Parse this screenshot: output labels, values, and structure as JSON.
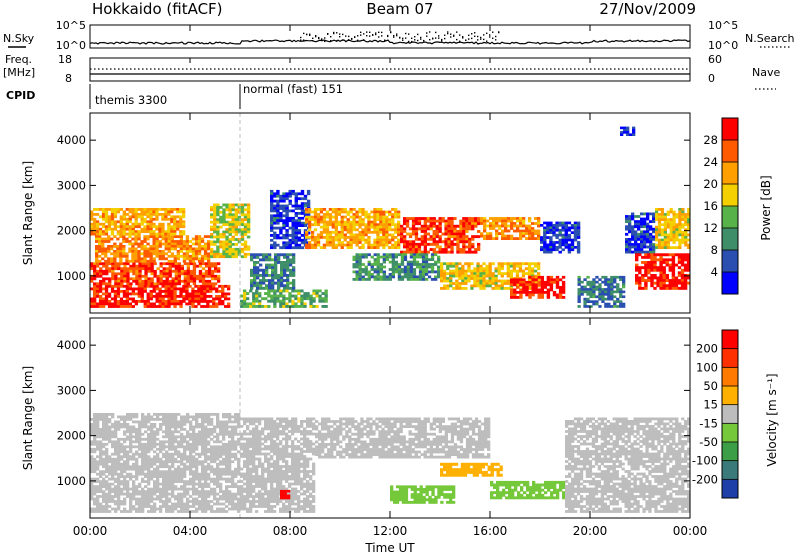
{
  "header": {
    "radar": "Hokkaido (fitACF)",
    "beam": "Beam 07",
    "date": "27/Nov/2009"
  },
  "noise_panel": {
    "left_label": "N.Sky",
    "right_label": "N.Search",
    "left_ticks": [
      "10^5",
      "10^0"
    ],
    "right_ticks": [
      "10^5",
      "10^0"
    ]
  },
  "freq_panel": {
    "left_label_top": "Freq.",
    "left_label_bottom": "[MHz]",
    "left_ticks": [
      "18",
      "8"
    ],
    "right_label": "Nave",
    "right_ticks": [
      "60",
      "0"
    ]
  },
  "cpid_panel": {
    "label": "CPID",
    "modes": [
      {
        "name": "themis 3300",
        "start_hour": 0
      },
      {
        "name": "normal (fast) 151",
        "start_hour": 6
      }
    ]
  },
  "power_panel": {
    "ylabel": "Slant Range [km]",
    "yticks": [
      "4000",
      "3000",
      "2000",
      "1000"
    ],
    "colorbar_label": "Power [dB]",
    "colorbar_ticks": [
      "28",
      "24",
      "20",
      "16",
      "12",
      "8",
      "4"
    ],
    "colors": [
      "#0000ff",
      "#2a4fb0",
      "#3f8e6a",
      "#58b24a",
      "#f5d000",
      "#ffa000",
      "#ff5a00",
      "#ff0000"
    ]
  },
  "velocity_panel": {
    "ylabel": "Slant Range [km]",
    "yticks": [
      "4000",
      "3000",
      "2000",
      "1000"
    ],
    "colorbar_label": "Velocity [m s⁻¹]",
    "colorbar_ticks": [
      "200",
      "100",
      "50",
      "15",
      "-15",
      "-50",
      "-100",
      "-200"
    ],
    "colors": [
      "#1f3fa8",
      "#3b7a7a",
      "#3c9e46",
      "#74c83a",
      "#bdbdbd",
      "#ffb000",
      "#ff7a00",
      "#ff3000",
      "#ff0000"
    ]
  },
  "x_axis": {
    "ticks": [
      "00:00",
      "04:00",
      "08:00",
      "12:00",
      "16:00",
      "20:00",
      "00:00"
    ],
    "label": "Time UT"
  },
  "chart_data": {
    "type": "heatmap",
    "title": "Hokkaido (fitACF) Beam 07 27/Nov/2009",
    "xlabel": "Time UT",
    "ylabel": "Slant Range [km]",
    "xlim": [
      0,
      24
    ],
    "ylim": [
      180,
      4600
    ],
    "power_clim": [
      2,
      32
    ],
    "velocity_clim": [
      -240,
      240
    ],
    "mode_change_hour": 6,
    "power_regions": [
      {
        "t0": 0.0,
        "t1": 5.6,
        "r0": 300,
        "r1": 800,
        "value": 30
      },
      {
        "t0": 0.0,
        "t1": 5.2,
        "r0": 800,
        "r1": 1300,
        "value": 28
      },
      {
        "t0": 0.2,
        "t1": 4.8,
        "r0": 1300,
        "r1": 1900,
        "value": 24
      },
      {
        "t0": 0.0,
        "t1": 3.8,
        "r0": 1900,
        "r1": 2500,
        "value": 22
      },
      {
        "t0": 4.8,
        "t1": 6.4,
        "r0": 1400,
        "r1": 2600,
        "value": 18
      },
      {
        "t0": 6.4,
        "t1": 8.2,
        "r0": 700,
        "r1": 1500,
        "value": 10
      },
      {
        "t0": 7.2,
        "t1": 8.8,
        "r0": 1600,
        "r1": 2900,
        "value": 6
      },
      {
        "t0": 6.0,
        "t1": 9.5,
        "r0": 300,
        "r1": 700,
        "value": 14
      },
      {
        "t0": 8.6,
        "t1": 12.4,
        "r0": 1600,
        "r1": 2500,
        "value": 22
      },
      {
        "t0": 12.4,
        "t1": 15.6,
        "r0": 1500,
        "r1": 2300,
        "value": 28
      },
      {
        "t0": 15.6,
        "t1": 18.0,
        "r0": 1800,
        "r1": 2300,
        "value": 24
      },
      {
        "t0": 18.0,
        "t1": 19.6,
        "r0": 1500,
        "r1": 2200,
        "value": 6
      },
      {
        "t0": 10.5,
        "t1": 14.0,
        "r0": 900,
        "r1": 1500,
        "value": 12
      },
      {
        "t0": 14.0,
        "t1": 18.0,
        "r0": 700,
        "r1": 1300,
        "value": 20
      },
      {
        "t0": 16.8,
        "t1": 19.0,
        "r0": 500,
        "r1": 1000,
        "value": 30
      },
      {
        "t0": 19.5,
        "t1": 21.4,
        "r0": 300,
        "r1": 1000,
        "value": 10
      },
      {
        "t0": 21.4,
        "t1": 22.6,
        "r0": 1500,
        "r1": 2400,
        "value": 6
      },
      {
        "t0": 21.8,
        "t1": 24.0,
        "r0": 700,
        "r1": 1500,
        "value": 30
      },
      {
        "t0": 22.6,
        "t1": 24.0,
        "r0": 1600,
        "r1": 2500,
        "value": 20
      },
      {
        "t0": 21.2,
        "t1": 21.8,
        "r0": 4100,
        "r1": 4300,
        "value": 4
      }
    ],
    "velocity_regions": [
      {
        "t0": 0.0,
        "t1": 6.0,
        "r0": 300,
        "r1": 2500,
        "value": 0
      },
      {
        "t0": 6.0,
        "t1": 9.0,
        "r0": 300,
        "r1": 2400,
        "value": 5
      },
      {
        "t0": 9.0,
        "t1": 16.0,
        "r0": 1500,
        "r1": 2400,
        "value": -5
      },
      {
        "t0": 12.0,
        "t1": 14.6,
        "r0": 500,
        "r1": 900,
        "value": -60
      },
      {
        "t0": 16.0,
        "t1": 19.0,
        "r0": 600,
        "r1": 1000,
        "value": -70
      },
      {
        "t0": 14.0,
        "t1": 16.5,
        "r0": 1100,
        "r1": 1400,
        "value": 40
      },
      {
        "t0": 19.0,
        "t1": 24.0,
        "r0": 300,
        "r1": 2400,
        "value": 0
      },
      {
        "t0": 7.6,
        "t1": 8.0,
        "r0": 600,
        "r1": 800,
        "value": 200
      }
    ]
  }
}
